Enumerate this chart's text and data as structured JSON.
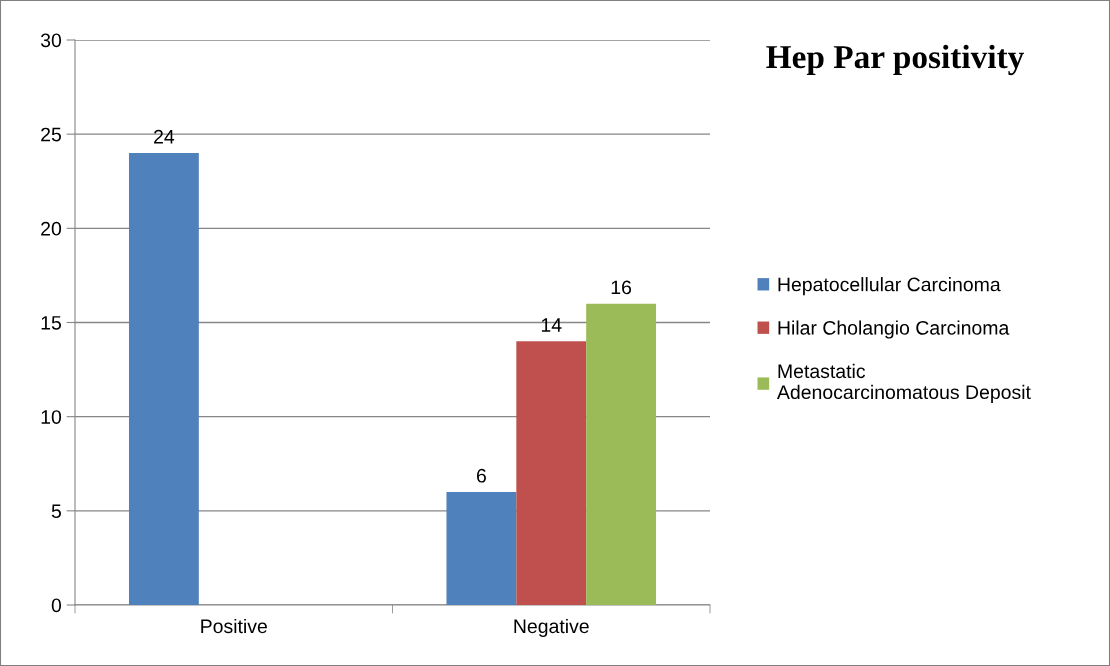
{
  "chart_data": {
    "type": "bar",
    "title": "Hep Par positivity",
    "categories": [
      "Positive",
      "Negative"
    ],
    "series": [
      {
        "name": "Hepatocellular Carcinoma",
        "color": "#4f81bd",
        "values": [
          24,
          6
        ]
      },
      {
        "name": "Hilar Cholangio Carcinoma",
        "color": "#c0504d",
        "values": [
          null,
          14
        ]
      },
      {
        "name": "Metastatic\nAdenocarcinomatous Deposit",
        "color": "#9bbb59",
        "values": [
          null,
          16
        ]
      }
    ],
    "ylim": [
      0,
      30
    ],
    "yticks": [
      0,
      5,
      10,
      15,
      20,
      25,
      30
    ],
    "grid": "y",
    "legend": "right",
    "data_labels": true
  }
}
